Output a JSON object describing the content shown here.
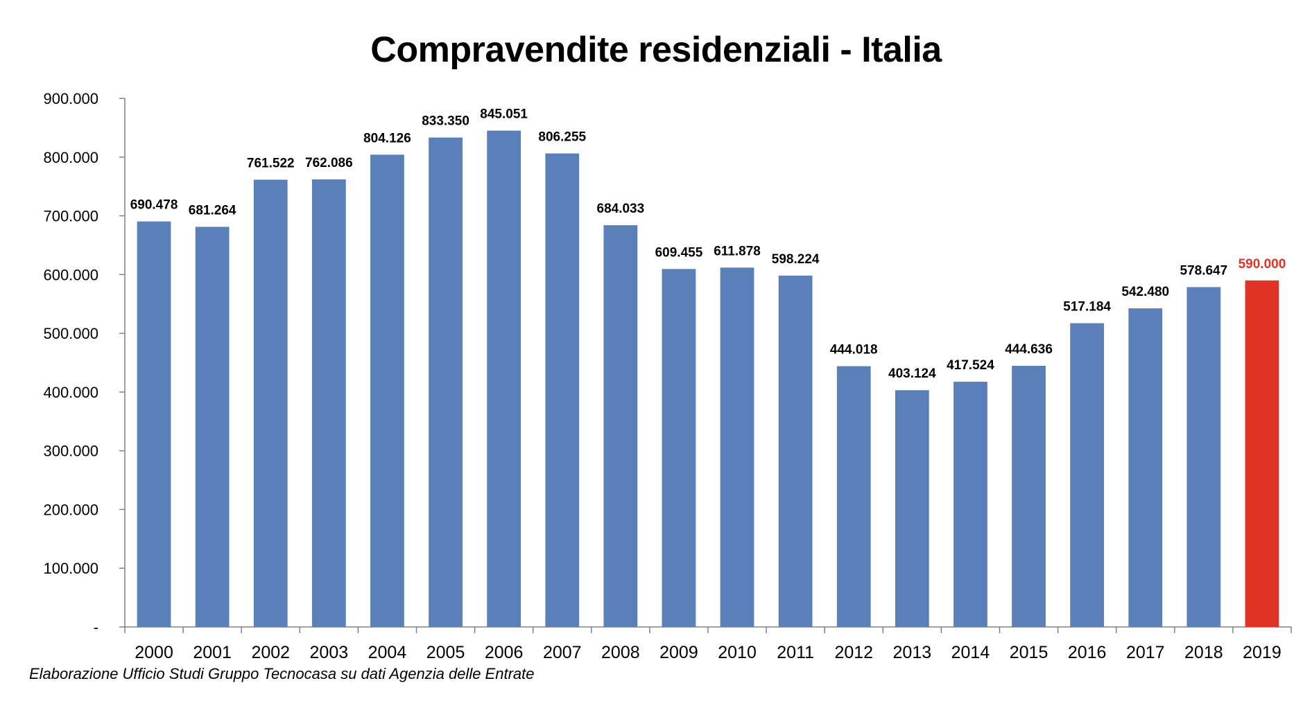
{
  "colors": {
    "bar": "#5b7fb8",
    "highlight": "#e13226",
    "axis": "#808080"
  },
  "chart_data": {
    "type": "bar",
    "title": "Compravendite residenziali - Italia",
    "source": "Elaborazione Ufficio Studi Gruppo Tecnocasa su dati Agenzia delle Entrate",
    "xlabel": "",
    "ylabel": "",
    "ylim": [
      0,
      900000
    ],
    "grid": false,
    "legend": "none",
    "categories": [
      "2000",
      "2001",
      "2002",
      "2003",
      "2004",
      "2005",
      "2006",
      "2007",
      "2008",
      "2009",
      "2010",
      "2011",
      "2012",
      "2013",
      "2014",
      "2015",
      "2016",
      "2017",
      "2018",
      "2019"
    ],
    "values": [
      690478,
      681264,
      761522,
      762086,
      804126,
      833350,
      845051,
      806255,
      684033,
      609455,
      611878,
      598224,
      444018,
      403124,
      417524,
      444636,
      517184,
      542480,
      578647,
      590000
    ],
    "value_labels": [
      "690.478",
      "681.264",
      "761.522",
      "762.086",
      "804.126",
      "833.350",
      "845.051",
      "806.255",
      "684.033",
      "609.455",
      "611.878",
      "598.224",
      "444.018",
      "403.124",
      "417.524",
      "444.636",
      "517.184",
      "542.480",
      "578.647",
      "590.000"
    ],
    "highlight_index": 19,
    "yticks": [
      0,
      100000,
      200000,
      300000,
      400000,
      500000,
      600000,
      700000,
      800000,
      900000
    ],
    "ytick_labels": [
      "-",
      "100.000",
      "200.000",
      "300.000",
      "400.000",
      "500.000",
      "600.000",
      "700.000",
      "800.000",
      "900.000"
    ]
  }
}
